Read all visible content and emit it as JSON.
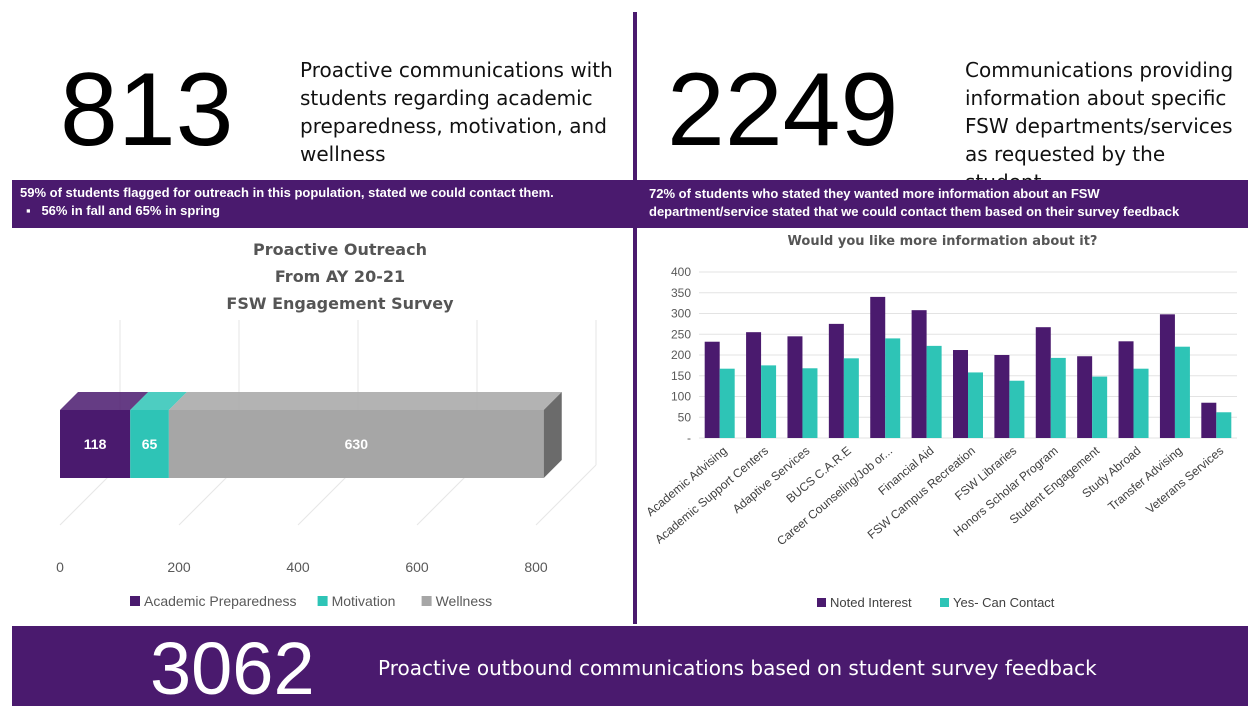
{
  "top_left": {
    "number": "813",
    "lines": [
      "Proactive communications with",
      "students regarding academic",
      "preparedness, motivation, and",
      "wellness"
    ]
  },
  "top_right": {
    "number": "2249",
    "lines": [
      "Communications providing",
      "information about specific",
      "FSW departments/services",
      "as requested by the student"
    ]
  },
  "band_left": {
    "line1": "59% of students flagged for outreach in this population, stated we could contact them.",
    "bullet": "▪",
    "line2": "56% in fall and 65% in spring"
  },
  "band_right": {
    "line1": "72% of students who stated they wanted more information about an FSW",
    "line2": "department/service stated that we could contact them based on their survey feedback"
  },
  "footer": {
    "number": "3062",
    "text": "Proactive outbound communications based on student survey feedback"
  },
  "colors": {
    "purple": "#4a1a6e",
    "teal": "#2ec4b6",
    "gray": "#a6a6a6"
  },
  "chart_data": [
    {
      "type": "bar",
      "orientation": "horizontal-stacked-3d",
      "title_lines": [
        "Proactive Outreach",
        "From AY 20-21",
        "FSW Engagement Survey"
      ],
      "series": [
        {
          "name": "Academic Preparedness",
          "value": 118,
          "color": "#4a1a6e"
        },
        {
          "name": "Motivation",
          "value": 65,
          "color": "#2ec4b6"
        },
        {
          "name": "Wellness",
          "value": 630,
          "color": "#a6a6a6"
        }
      ],
      "xlim": [
        0,
        800
      ],
      "xticks": [
        "0",
        "200",
        "400",
        "600",
        "800"
      ],
      "legend_position": "bottom"
    },
    {
      "type": "bar",
      "title": "Would you like more information about it?",
      "categories": [
        "Academic Advising",
        "Academic Support Centers",
        "Adaptive Services",
        "BUCS C.A.R.E",
        "Career Counseling/Job or...",
        "Financial Aid",
        "FSW Campus Recreation",
        "FSW Libraries",
        "Honors Scholar Program",
        "Student Engagement",
        "Study Abroad",
        "Transfer Advising",
        "Veterans Services"
      ],
      "series": [
        {
          "name": "Noted Interest",
          "color": "#4a1a6e",
          "values": [
            232,
            255,
            245,
            275,
            340,
            308,
            212,
            200,
            267,
            197,
            233,
            298,
            85
          ]
        },
        {
          "name": "Yes- Can Contact",
          "color": "#2ec4b6",
          "values": [
            167,
            175,
            168,
            192,
            240,
            222,
            158,
            138,
            193,
            148,
            167,
            220,
            62
          ]
        }
      ],
      "ylim": [
        0,
        400
      ],
      "yticks": [
        "-",
        "50",
        "100",
        "150",
        "200",
        "250",
        "300",
        "350",
        "400"
      ],
      "legend_position": "bottom"
    }
  ]
}
